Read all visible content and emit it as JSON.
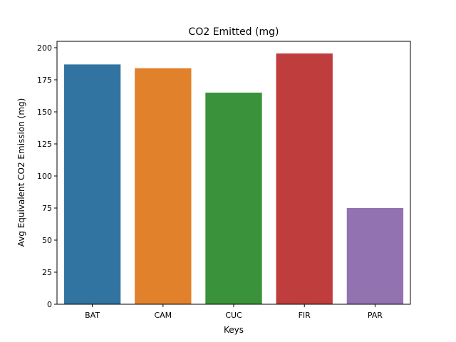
{
  "chart_data": {
    "type": "bar",
    "title": "CO2 Emitted (mg)",
    "xlabel": "Keys",
    "ylabel": "Avg Equivalent CO2 Emission (mg)",
    "categories": [
      "BAT",
      "CAM",
      "CUC",
      "FIR",
      "PAR"
    ],
    "values": [
      187,
      184,
      165,
      195.5,
      75
    ],
    "colors": [
      "#3274a1",
      "#e1812c",
      "#3a923a",
      "#c03d3e",
      "#9372b2"
    ],
    "ylim": [
      0,
      205
    ],
    "yticks": [
      0,
      25,
      50,
      75,
      100,
      125,
      150,
      175,
      200
    ],
    "grid": false,
    "legend": "none"
  }
}
